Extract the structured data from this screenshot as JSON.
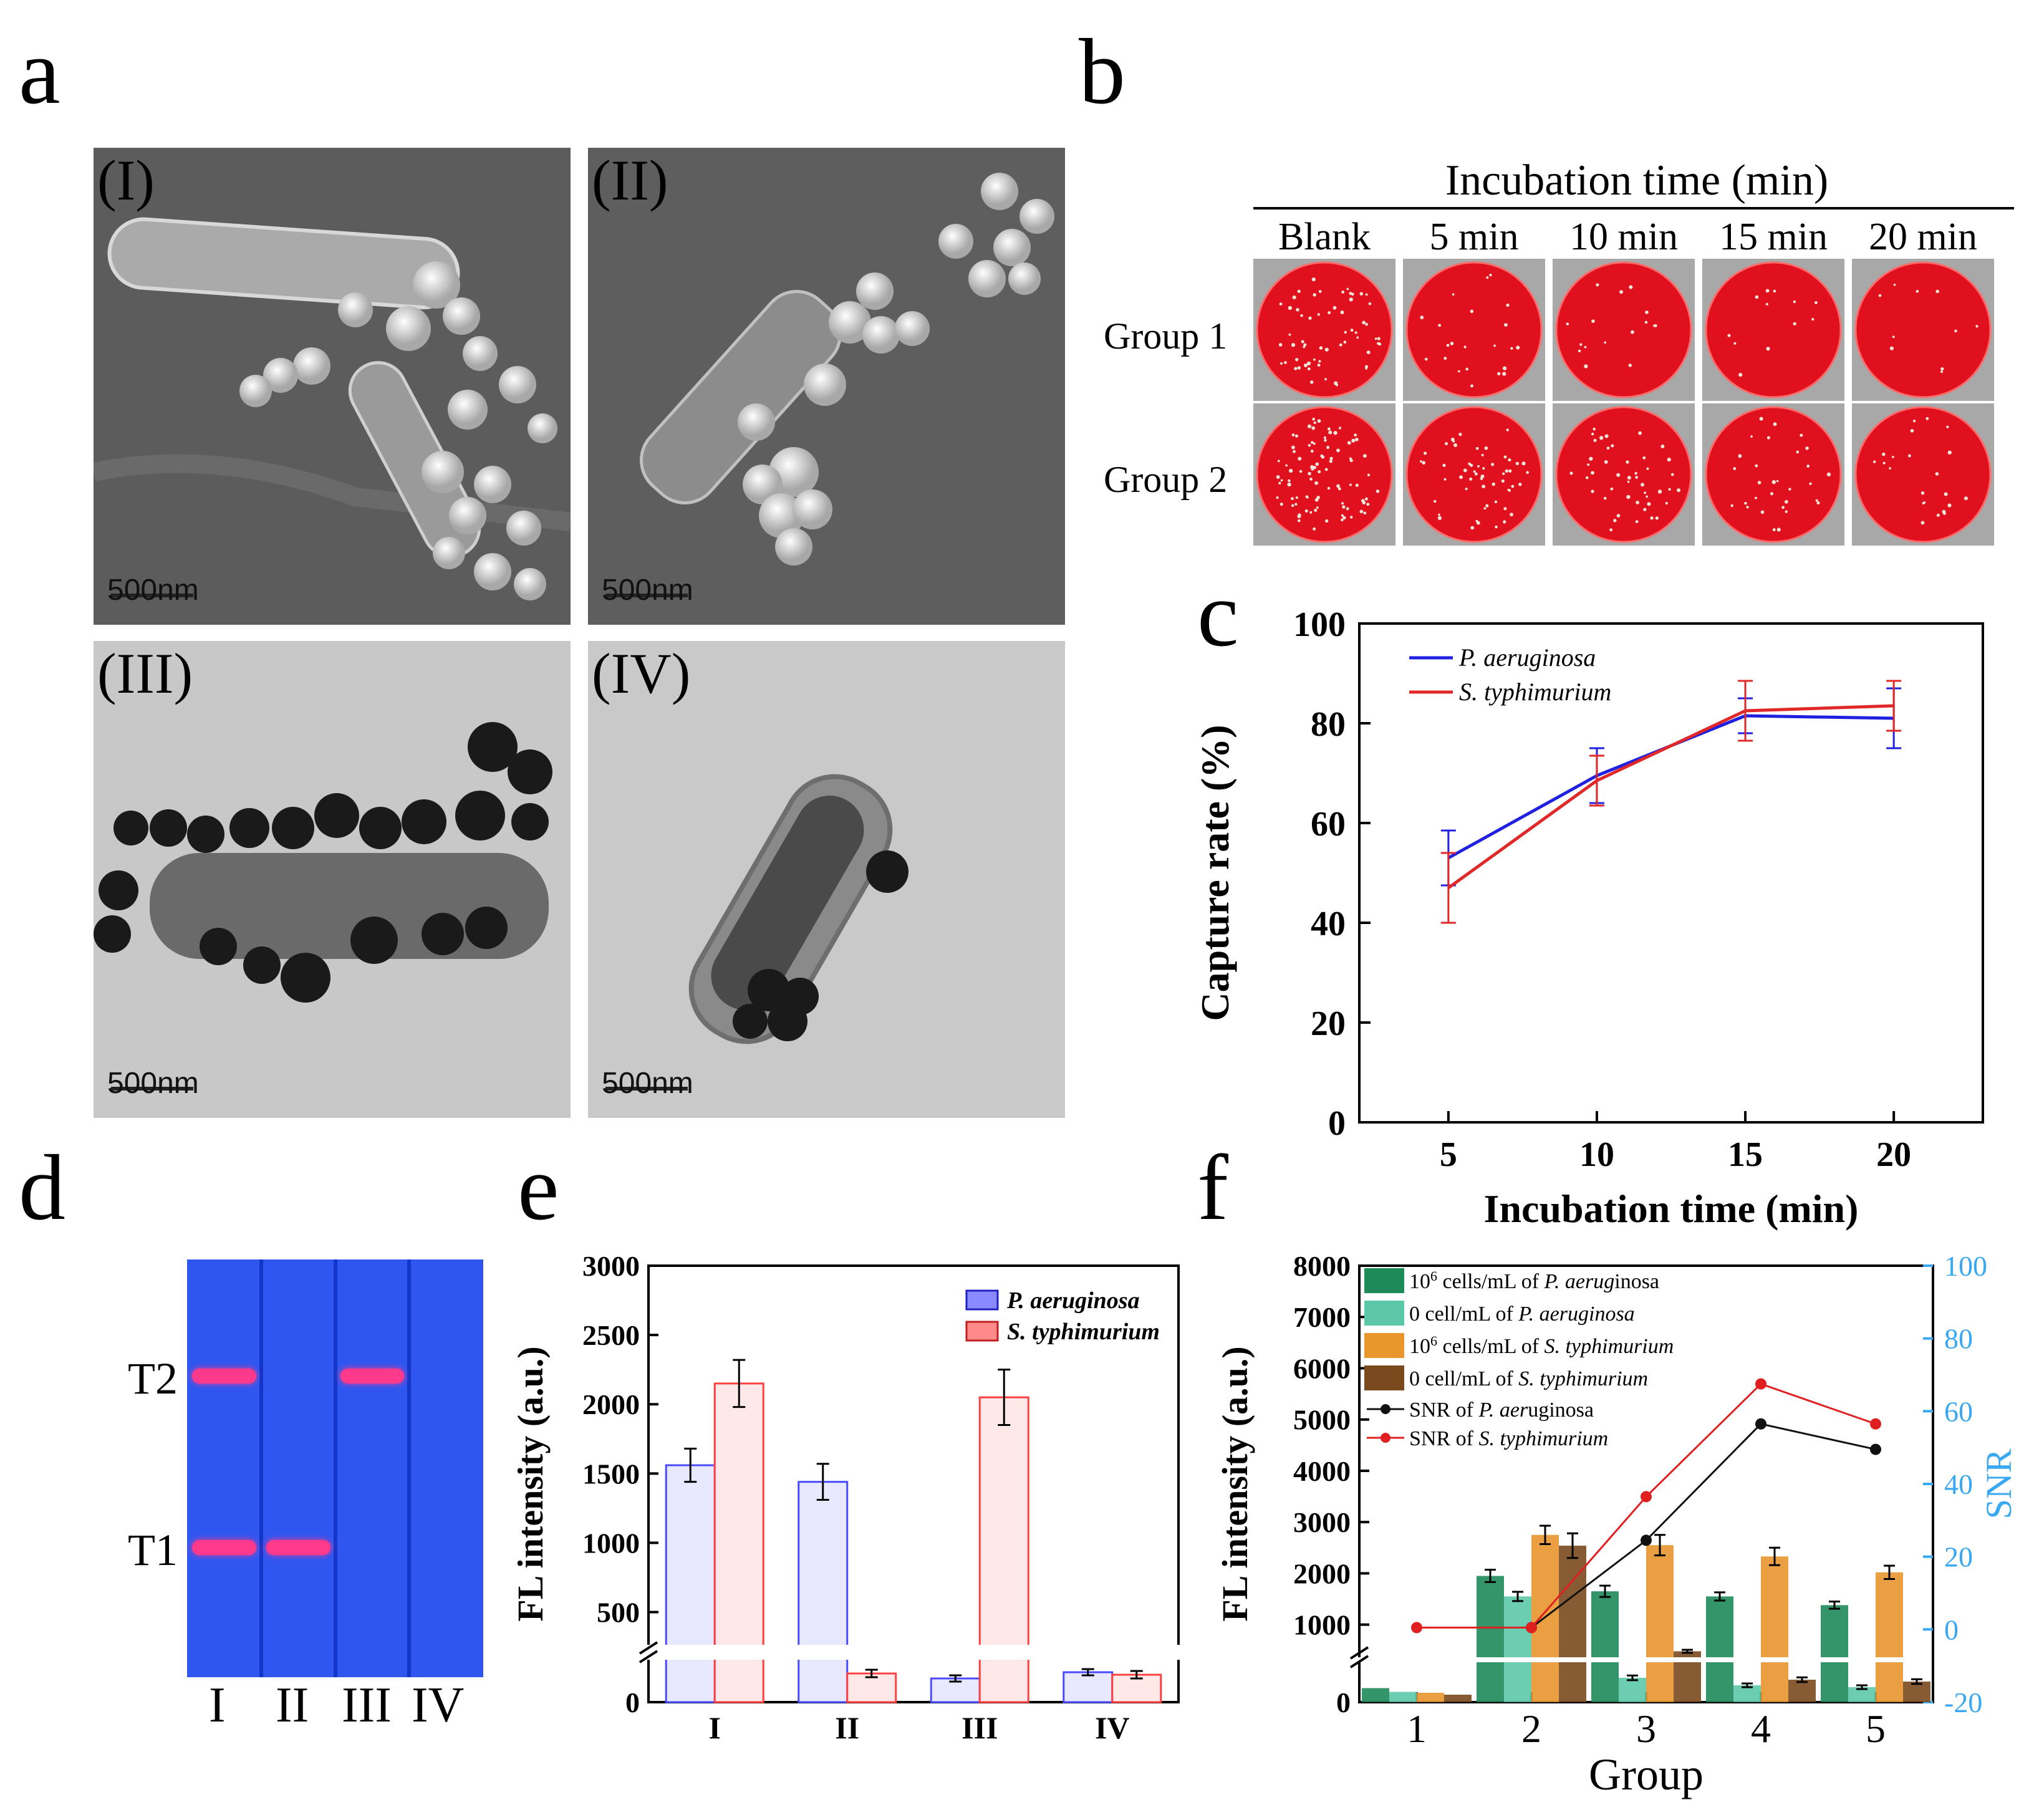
{
  "panels": {
    "a": "a",
    "b": "b",
    "c": "c",
    "d": "d",
    "e": "e",
    "f": "f"
  },
  "panel_a": {
    "images": [
      {
        "tag": "(I)",
        "scale": "500nm",
        "mode": "SEM"
      },
      {
        "tag": "(II)",
        "scale": "500nm",
        "mode": "SEM"
      },
      {
        "tag": "(III)",
        "scale": "500nm",
        "mode": "TEM"
      },
      {
        "tag": "(IV)",
        "scale": "500nm",
        "mode": "TEM"
      }
    ]
  },
  "panel_b": {
    "header": "Incubation time (min)",
    "columns": [
      "Blank",
      "5 min",
      "10 min",
      "15 min",
      "20 min"
    ],
    "rows": [
      "Group 1",
      "Group 2"
    ],
    "colony_density": [
      [
        60,
        22,
        16,
        12,
        10
      ],
      [
        90,
        55,
        45,
        30,
        22
      ]
    ],
    "plate_color": "#e0101e"
  },
  "panel_d": {
    "line_labels": [
      "T2",
      "T1"
    ],
    "lane_labels": [
      "I",
      "II",
      "III",
      "IV"
    ],
    "strip_color": "#2f57f0",
    "band_color": "#ff3a8c",
    "bands": {
      "T2": [
        true,
        false,
        true,
        false
      ],
      "T1": [
        true,
        true,
        false,
        false
      ]
    }
  },
  "chart_data": [
    {
      "id": "c",
      "type": "line",
      "xlabel": "Incubation time (min)",
      "ylabel": "Capture rate (%)",
      "x": [
        5,
        10,
        15,
        20
      ],
      "xticks": [
        "5",
        "10",
        "15",
        "20"
      ],
      "xlim": [
        2,
        23
      ],
      "ylim": [
        0,
        100
      ],
      "yticks": [
        "0",
        "20",
        "40",
        "60",
        "80",
        "100"
      ],
      "legend_position": "top-left",
      "series": [
        {
          "name": "P. aeruginosa",
          "color": "#2020e0",
          "values": [
            53,
            69.5,
            81.5,
            81
          ],
          "errors": [
            5.5,
            5.5,
            3.5,
            6
          ]
        },
        {
          "name": "S. typhimurium",
          "color": "#e02828",
          "values": [
            47,
            68.5,
            82.5,
            83.5
          ],
          "errors": [
            7,
            5,
            6,
            5
          ]
        }
      ]
    },
    {
      "id": "e",
      "type": "bar",
      "ylabel": "FL intensity (a.u.)",
      "categories": [
        "I",
        "II",
        "III",
        "IV"
      ],
      "yticks": [
        "0",
        "500",
        "1000",
        "1500",
        "2000",
        "2500",
        "3000"
      ],
      "axis_break": true,
      "legend_position": "top-right",
      "series": [
        {
          "name": "P. aeruginosa",
          "color": "#4a4aff",
          "values": [
            1560,
            1440,
            190,
            240
          ],
          "errors": [
            120,
            130,
            25,
            25
          ]
        },
        {
          "name": "S. typhimurium",
          "color": "#ff4040",
          "values": [
            2150,
            230,
            2050,
            220
          ],
          "errors": [
            170,
            30,
            200,
            30
          ]
        }
      ]
    },
    {
      "id": "f",
      "type": "bar",
      "xlabel": "Group",
      "ylabel": "FL intensity (a.u.)",
      "y2label": "SNR",
      "categories": [
        "1",
        "2",
        "3",
        "4",
        "5"
      ],
      "yticks": [
        "0",
        "1000",
        "2000",
        "3000",
        "4000",
        "5000",
        "6000",
        "7000",
        "8000"
      ],
      "y2ticks": [
        "-20",
        "0",
        "20",
        "40",
        "60",
        "80",
        "100"
      ],
      "y2lim": [
        -20,
        100
      ],
      "axis_break": true,
      "legend_position": "top-left",
      "bar_series": [
        {
          "name_lead": "10",
          "name_sup": "6",
          "name_tail": " cells/mL of ",
          "name_italic": "P. aerug",
          "name_rest": "inosa",
          "color": "#1e8a5a",
          "values": [
            150,
            1950,
            1650,
            1550,
            1380
          ],
          "errors": [
            0,
            120,
            110,
            80,
            70
          ]
        },
        {
          "name_lead": "0 cell/mL of ",
          "name_sup": "",
          "name_tail": "",
          "name_italic": "P. aeruginosa",
          "name_rest": "",
          "color": "#5cc8a8",
          "values": [
            110,
            1550,
            260,
            180,
            160
          ],
          "errors": [
            0,
            90,
            25,
            20,
            20
          ]
        },
        {
          "name_lead": "10",
          "name_sup": "6",
          "name_tail": " cells/mL of ",
          "name_italic": "S. typhimurium",
          "name_rest": "",
          "color": "#e8962e",
          "values": [
            100,
            2750,
            2550,
            2330,
            2020
          ],
          "errors": [
            0,
            180,
            200,
            170,
            130
          ]
        },
        {
          "name_lead": "0 cell/mL of ",
          "name_sup": "",
          "name_tail": "",
          "name_italic": "S. typhimurium",
          "name_rest": "",
          "color": "#7a4a1e",
          "values": [
            80,
            2540,
            480,
            240,
            220
          ],
          "errors": [
            0,
            240,
            30,
            25,
            25
          ]
        }
      ],
      "line_series": [
        {
          "name_lead": "SNR of ",
          "name_italic": "P. aer",
          "name_rest": "uginosa",
          "color": "#111111",
          "values": [
            null,
            0.5,
            24.5,
            56.5,
            49.5
          ]
        },
        {
          "name_lead": "SNR of ",
          "name_italic": "S. typhimurium",
          "name_rest": "",
          "color": "#e02020",
          "values": [
            0.5,
            0.5,
            36.5,
            67.5,
            56.5
          ]
        }
      ]
    }
  ]
}
